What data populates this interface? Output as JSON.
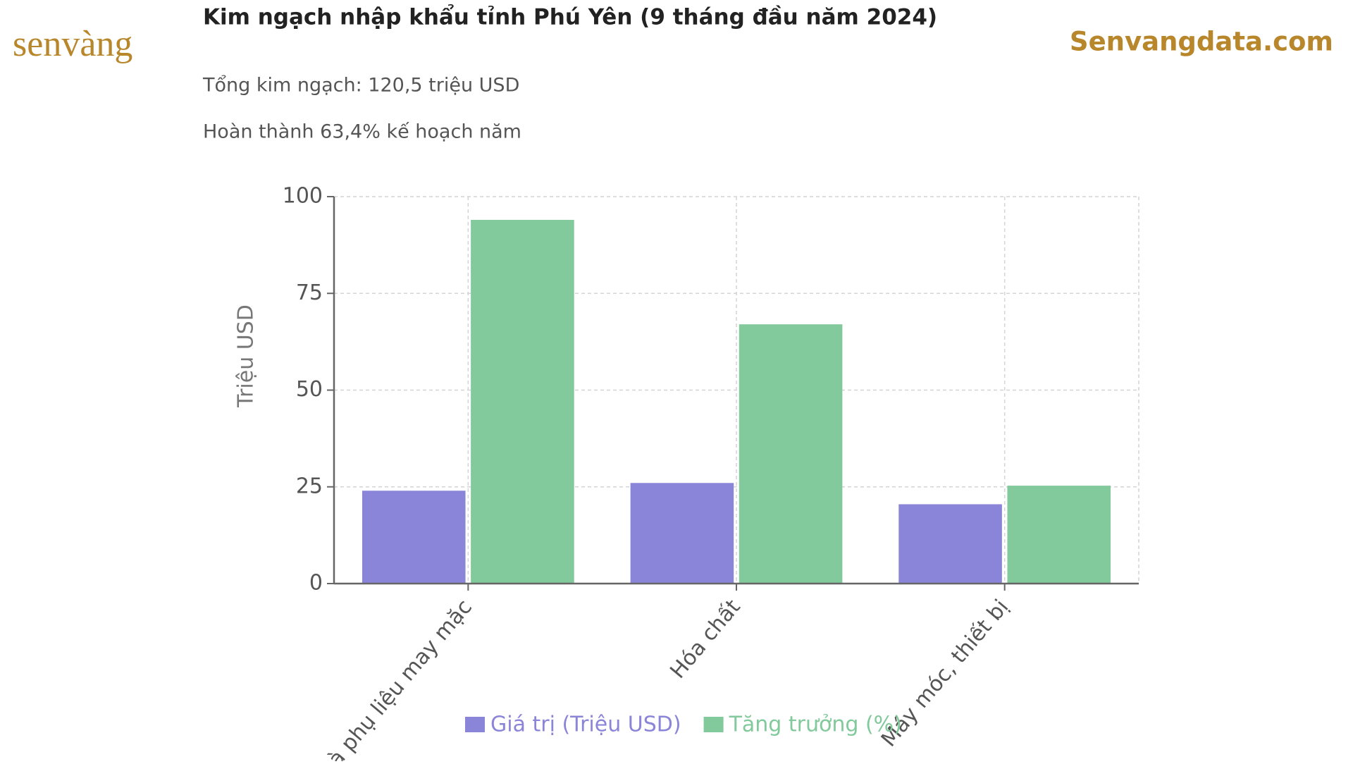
{
  "brand": {
    "logo": "senvàng",
    "site": "Senvangdata.com"
  },
  "chart_data": {
    "type": "bar",
    "title": "Kim ngạch nhập khẩu tỉnh Phú Yên (9 tháng đầu năm 2024)",
    "subtitles": [
      "Tổng kim ngạch: 120,5 triệu USD",
      "Hoàn thành 63,4% kế hoạch năm"
    ],
    "y_label": "Triệu USD",
    "categories": [
      "à phụ liệu may mặc",
      "Hóa chất",
      "Máy móc, thiết bị"
    ],
    "series": [
      {
        "name": "Giá trị (Triệu USD)",
        "color": "#8b85d9",
        "values": [
          24,
          26,
          20.5
        ]
      },
      {
        "name": "Tăng trưởng (%)",
        "color": "#82c99b",
        "values": [
          94,
          67,
          25.3
        ]
      }
    ],
    "ylim": [
      0,
      100
    ],
    "yticks": [
      0,
      25,
      50,
      75,
      100
    ],
    "grid": true
  }
}
